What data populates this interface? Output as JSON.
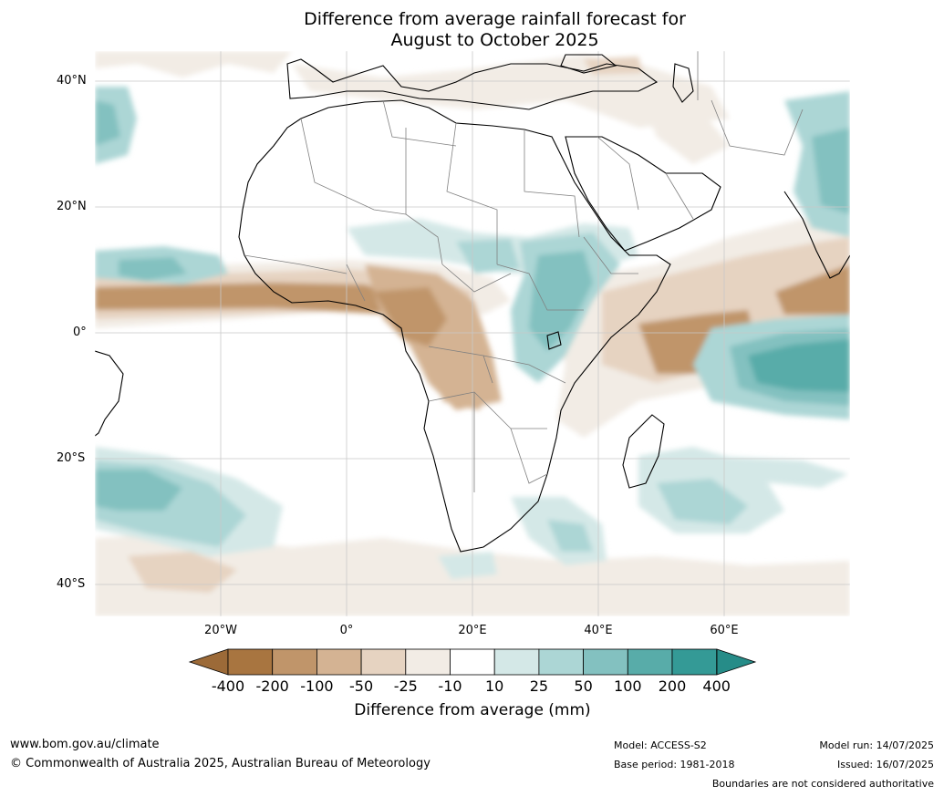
{
  "title_line1": "Difference from average rainfall forecast for",
  "title_line2": "August to October 2025",
  "lat_labels": [
    "40°N",
    "20°N",
    "0°",
    "20°S",
    "40°S"
  ],
  "lon_labels": [
    "20°W",
    "0°",
    "20°E",
    "40°E",
    "60°E"
  ],
  "colorbar": {
    "labels": [
      "-400",
      "-200",
      "-100",
      "-50",
      "-25",
      "-10",
      "10",
      "25",
      "50",
      "100",
      "200",
      "400"
    ],
    "colors": [
      "#a87540",
      "#c0956a",
      "#d4b393",
      "#e6d3c1",
      "#f2ece5",
      "#ffffff",
      "#d4e8e7",
      "#acd6d5",
      "#83c1c0",
      "#58aca9",
      "#349a96"
    ],
    "extend_low_color": "#9c6a38",
    "extend_high_color": "#268c88",
    "title": "Difference from average (mm)"
  },
  "footer": {
    "website": "www.bom.gov.au/climate",
    "copyright": "© Commonwealth of Australia 2025, Australian Bureau of Meteorology",
    "model": "Model: ACCESS-S2",
    "base_period": "Base period: 1981-2018",
    "model_run": "Model run: 14/07/2025",
    "issued": "Issued: 16/07/2025",
    "disclaimer": "Boundaries are not considered authoritative"
  },
  "icons": {
    "map": "rainfall-anomaly-map"
  }
}
